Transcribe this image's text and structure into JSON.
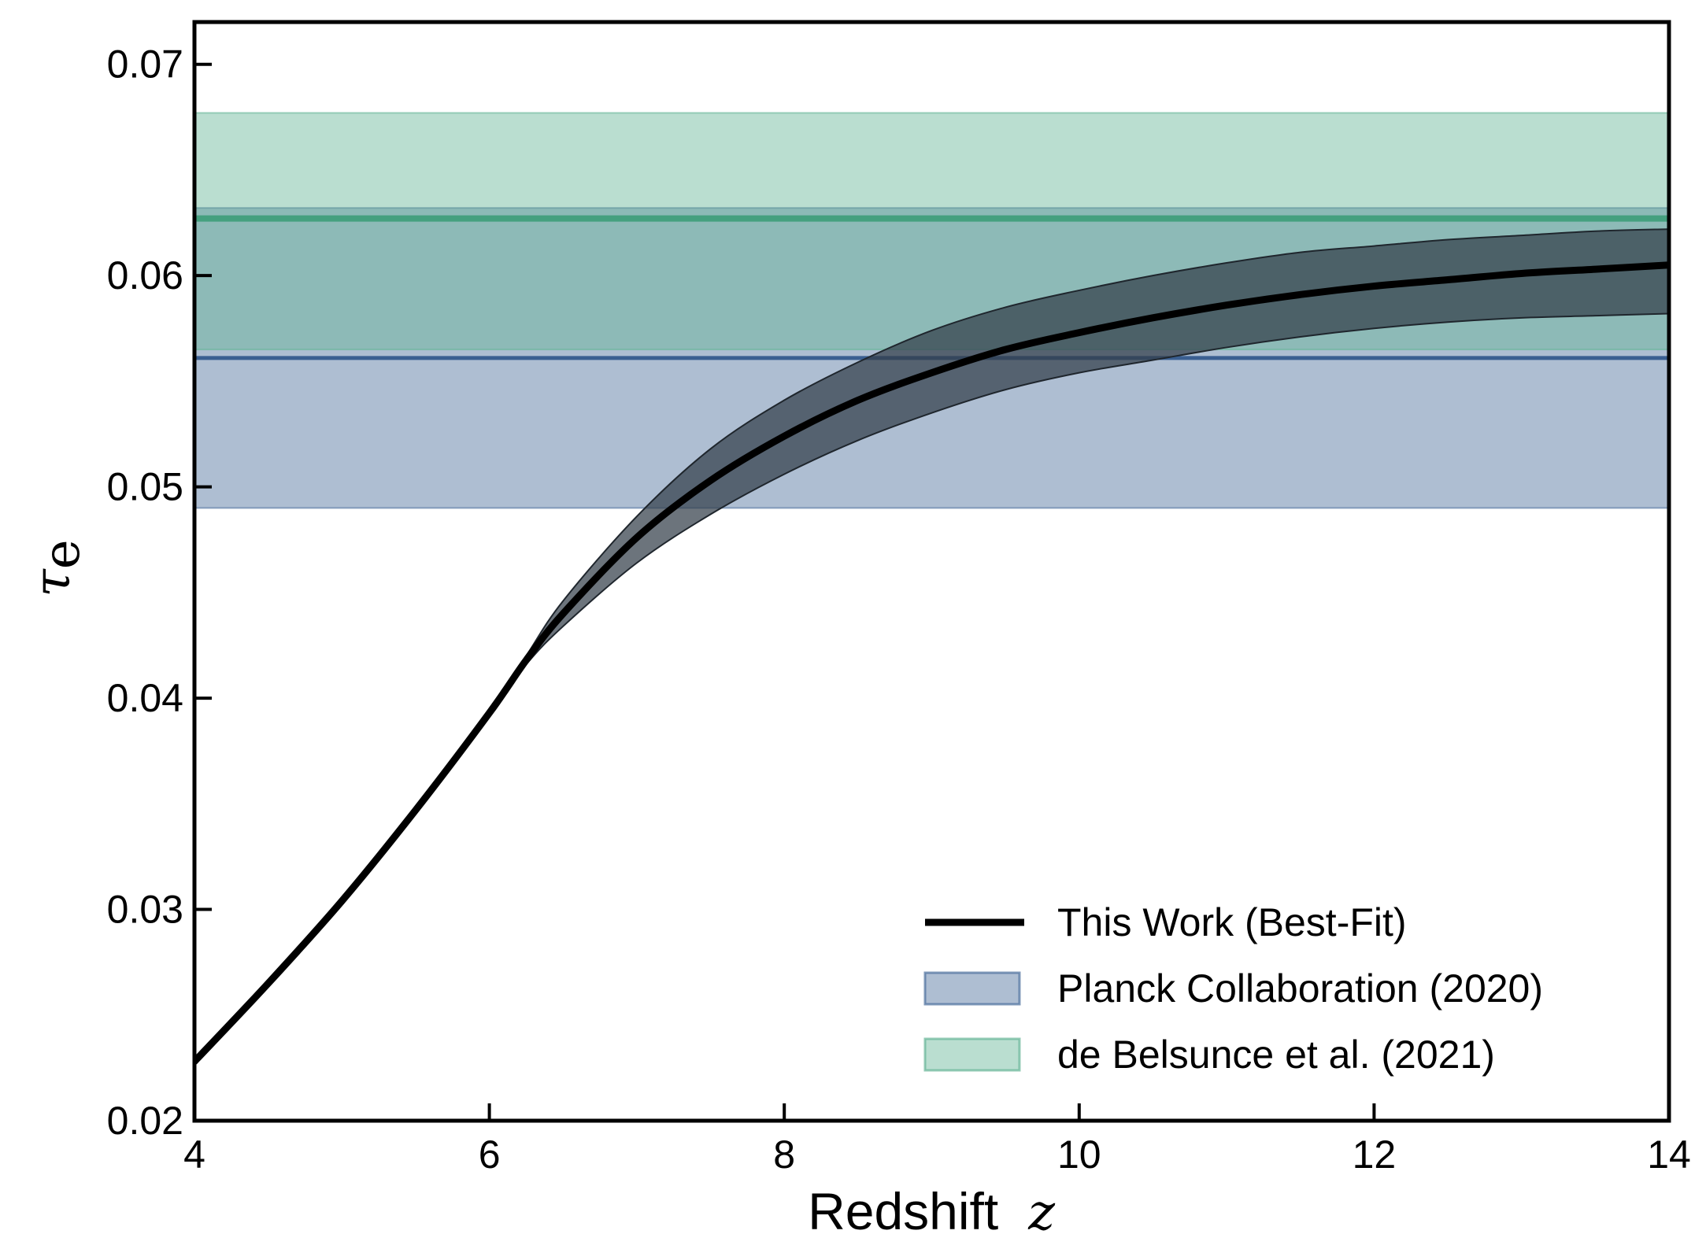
{
  "chart_data": {
    "type": "line",
    "xlabel": "Redshift",
    "xlabel_symbol": "z",
    "ylabel_symbol": "τ",
    "ylabel_subscript": "e",
    "xlim": [
      4,
      14
    ],
    "ylim": [
      0.02,
      0.072
    ],
    "xticks": [
      4,
      6,
      8,
      10,
      12,
      14
    ],
    "yticks": [
      0.02,
      0.03,
      0.04,
      0.05,
      0.06,
      0.07
    ],
    "ytick_labels": [
      "0.02",
      "0.03",
      "0.04",
      "0.05",
      "0.06",
      "0.07"
    ],
    "grid": false,
    "legend_position": "bottom-right",
    "series": [
      {
        "name": "This Work (Best-Fit)",
        "kind": "line",
        "color": "#000000",
        "x": [
          4.0,
          4.5,
          5.0,
          5.5,
          6.0,
          6.25,
          6.5,
          7.0,
          7.5,
          8.0,
          8.5,
          9.0,
          9.5,
          10.0,
          10.5,
          11.0,
          11.5,
          12.0,
          12.5,
          13.0,
          13.5,
          14.0
        ],
        "y": [
          0.0228,
          0.0265,
          0.0304,
          0.0347,
          0.0393,
          0.0418,
          0.044,
          0.0476,
          0.0503,
          0.0524,
          0.0541,
          0.0554,
          0.0565,
          0.0573,
          0.058,
          0.0586,
          0.0591,
          0.0595,
          0.0598,
          0.0601,
          0.0603,
          0.0605
        ],
        "band_lower": [
          0.0228,
          0.0265,
          0.0304,
          0.0347,
          0.0393,
          0.0416,
          0.0434,
          0.0464,
          0.0487,
          0.0506,
          0.0522,
          0.0535,
          0.0546,
          0.0554,
          0.056,
          0.0566,
          0.0571,
          0.0575,
          0.0578,
          0.058,
          0.0581,
          0.0582
        ],
        "band_upper": [
          0.0228,
          0.0265,
          0.0304,
          0.0347,
          0.0393,
          0.042,
          0.0446,
          0.0486,
          0.0518,
          0.0541,
          0.0559,
          0.0574,
          0.0585,
          0.0593,
          0.06,
          0.0606,
          0.0611,
          0.0614,
          0.0617,
          0.0619,
          0.0621,
          0.0622
        ],
        "band_color": "#333e4a"
      },
      {
        "name": "Planck Collaboration (2020)",
        "kind": "band",
        "center": 0.0561,
        "lower": 0.049,
        "upper": 0.0632,
        "color": "#4c6f9c",
        "line_color": "#3a5f91"
      },
      {
        "name": "de Belsunce et al. (2021)",
        "kind": "band",
        "center": 0.0627,
        "lower": 0.0565,
        "upper": 0.0677,
        "color": "#66b597",
        "line_color": "#45a07f"
      }
    ]
  }
}
